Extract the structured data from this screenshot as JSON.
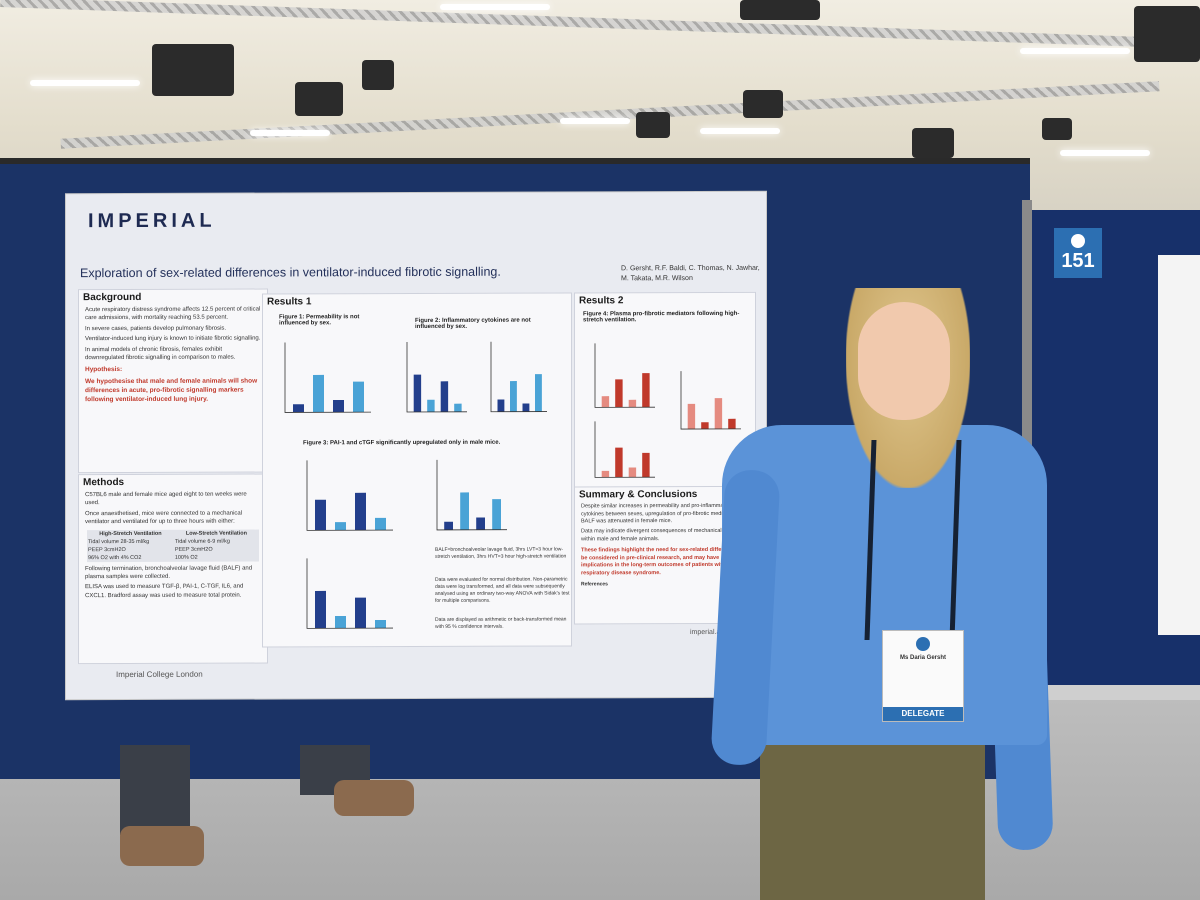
{
  "booth_number": "151",
  "poster": {
    "logo": "IMPERIAL",
    "title": "Exploration of sex-related differences in ventilator-induced fibrotic signalling.",
    "authors": "D. Gersht, R.F. Baldi, C. Thomas, N. Jawhar, M. Takata, M.R. Wilson",
    "background": {
      "heading": "Background",
      "bullets": [
        "Acute respiratory distress syndrome affects 12.5 percent of critical care admissions, with mortality reaching 53.5 percent.",
        "In severe cases, patients develop pulmonary fibrosis.",
        "Ventilator-induced lung injury is known to initiate fibrotic signalling.",
        "In animal models of chronic fibrosis, females exhibit downregulated fibrotic signalling in comparison to males."
      ],
      "hypothesis_label": "Hypothesis:",
      "hypothesis": "We hypothesise that male and female animals will show differences in acute, pro-fibrotic signalling markers following ventilator-induced lung injury."
    },
    "methods": {
      "heading": "Methods",
      "bullets": [
        "C57BL6 male and female mice aged eight to ten weeks were used.",
        "Once anaesthetised, mice were connected to a mechanical ventilator and ventilated for up to three hours with either:"
      ],
      "table_headers": [
        "High-Stretch Ventilation",
        "Low-Stretch Ventilation"
      ],
      "table_rows": [
        [
          "Tidal volume 28-35 ml/kg",
          "Tidal volume 6-9 ml/kg"
        ],
        [
          "PEEP 3cmH2O",
          "PEEP 3cmH2O"
        ],
        [
          "96% O2 with 4% CO2",
          "100% O2"
        ]
      ],
      "bullets2": [
        "Following termination, bronchoalveolar lavage fluid (BALF) and plasma samples were collected.",
        "ELISA was used to measure TGF-β, PAI-1, C-TGF, IL6, and CXCL1. Bradford assay was used to measure total protein."
      ]
    },
    "results1": {
      "heading": "Results 1",
      "fig1": "Figure 1: Permeability is not influenced by sex.",
      "fig2": "Figure 2: Inflammatory cytokines are not influenced by sex.",
      "fig3": "Figure 3: PAI-1 and cTGF significantly upregulated only in male mice.",
      "notes": [
        "BALF=bronchoalveolar lavage fluid, 3hrs LVT=3 hour low-stretch ventilation, 3hrs HVT=3 hour high-stretch ventilation",
        "Data were evaluated for normal distribution. Non-parametric data were log transformed, and all data were subsequently analysed using an ordinary two-way ANOVA with Sidak's test for multiple comparisons.",
        "Data are displayed as arithmetic or back-transformed mean with 95 % confidence intervals."
      ]
    },
    "results2": {
      "heading": "Results 2",
      "fig4": "Figure 4: Plasma pro-fibrotic mediators following high-stretch ventilation."
    },
    "summary": {
      "heading": "Summary & Conclusions",
      "bullets": [
        "Despite similar increases in permeability and pro-inflammatory cytokines between sexes, upregulation of pro-fibrotic mediators in BALF was attenuated in female mice.",
        "Data may indicate divergent consequences of mechanical ventilation within male and female animals."
      ],
      "highlight": "These findings highlight the need for sex-related differences to be considered in pre-clinical research, and may have implications in the long-term outcomes of patients with acute respiratory disease syndrome."
    },
    "references_label": "References",
    "footer_left": "Imperial College London",
    "footer_right": "imperial.ac.uk"
  },
  "delegate_badge": {
    "name": "Ms Daria Gersht",
    "role": "DELEGATE"
  }
}
